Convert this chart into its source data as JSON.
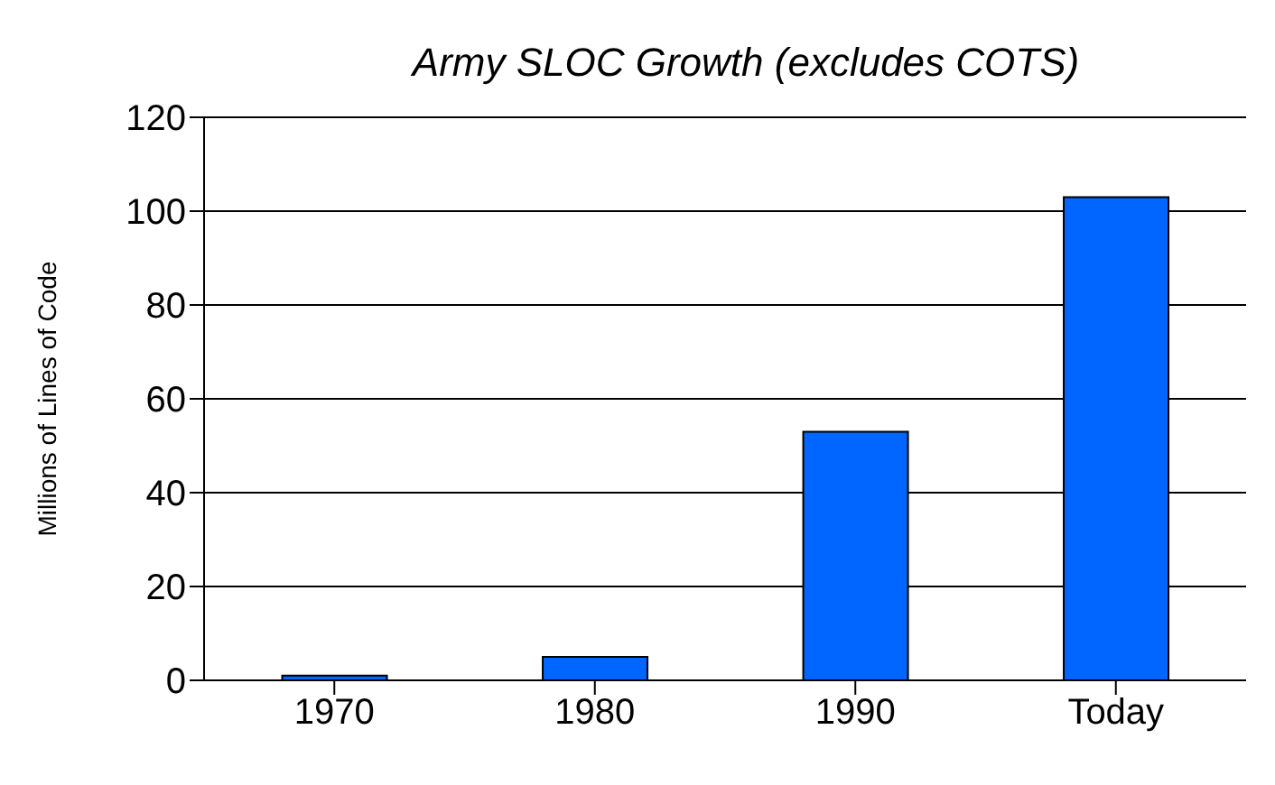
{
  "chart_data": {
    "type": "bar",
    "title": "Army SLOC Growth (excludes COTS)",
    "ylabel": "Millions of Lines of Code",
    "categories": [
      "1970",
      "1980",
      "1990",
      "Today"
    ],
    "values": [
      1,
      5,
      53,
      103
    ],
    "color": "#0066ff",
    "ylim": [
      0,
      120
    ],
    "yticks": [
      0,
      20,
      40,
      60,
      80,
      100,
      120
    ],
    "grid": "y"
  }
}
